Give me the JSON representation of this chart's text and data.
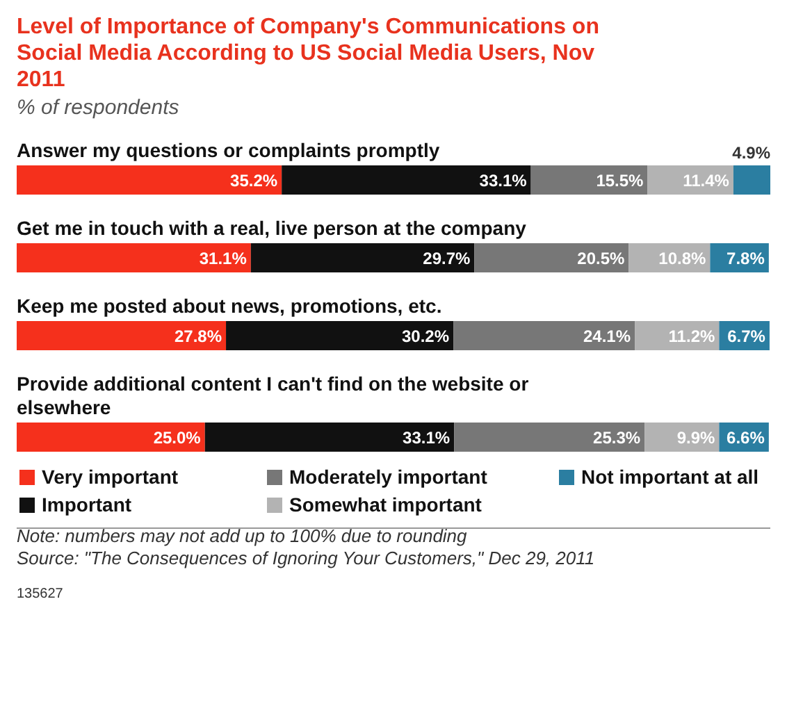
{
  "chart_data": {
    "type": "bar",
    "orientation": "horizontal",
    "stacked": true,
    "title": "Level of Importance of Company's Communications on Social Media According to US Social Media Users, Nov 2011",
    "subtitle": "% of respondents",
    "categories": [
      "Answer my questions or complaints promptly",
      "Get me in touch with a real, live person at the company",
      "Keep me posted about news, promotions, etc.",
      "Provide additional content I can't find on the website or elsewhere"
    ],
    "series": [
      {
        "name": "Very important",
        "color": "#f5301c",
        "values": [
          35.2,
          31.1,
          27.8,
          25.0
        ],
        "value_labels": [
          "35.2%",
          "31.1%",
          "27.8%",
          "25.0%"
        ]
      },
      {
        "name": "Important",
        "color": "#111111",
        "values": [
          33.1,
          29.7,
          30.2,
          33.1
        ],
        "value_labels": [
          "33.1%",
          "29.7%",
          "30.2%",
          "33.1%"
        ]
      },
      {
        "name": "Moderately important",
        "color": "#777777",
        "values": [
          15.5,
          20.5,
          24.1,
          25.3
        ],
        "value_labels": [
          "15.5%",
          "20.5%",
          "24.1%",
          "25.3%"
        ]
      },
      {
        "name": "Somewhat important",
        "color": "#b3b3b3",
        "values": [
          11.4,
          10.8,
          11.2,
          9.9
        ],
        "value_labels": [
          "11.4%",
          "10.8%",
          "11.2%",
          "9.9%"
        ]
      },
      {
        "name": "Not important at all",
        "color": "#2b7ea1",
        "values": [
          4.9,
          7.8,
          6.7,
          6.6
        ],
        "value_labels": [
          "4.9%",
          "7.8%",
          "6.7%",
          "6.6%"
        ]
      }
    ],
    "legend": "bottom",
    "annotations": [
      "Note: numbers may not add up to 100% due to rounding",
      "Source: \"The Consequences of Ignoring Your Customers,\" Dec 29, 2011",
      "135627"
    ]
  }
}
